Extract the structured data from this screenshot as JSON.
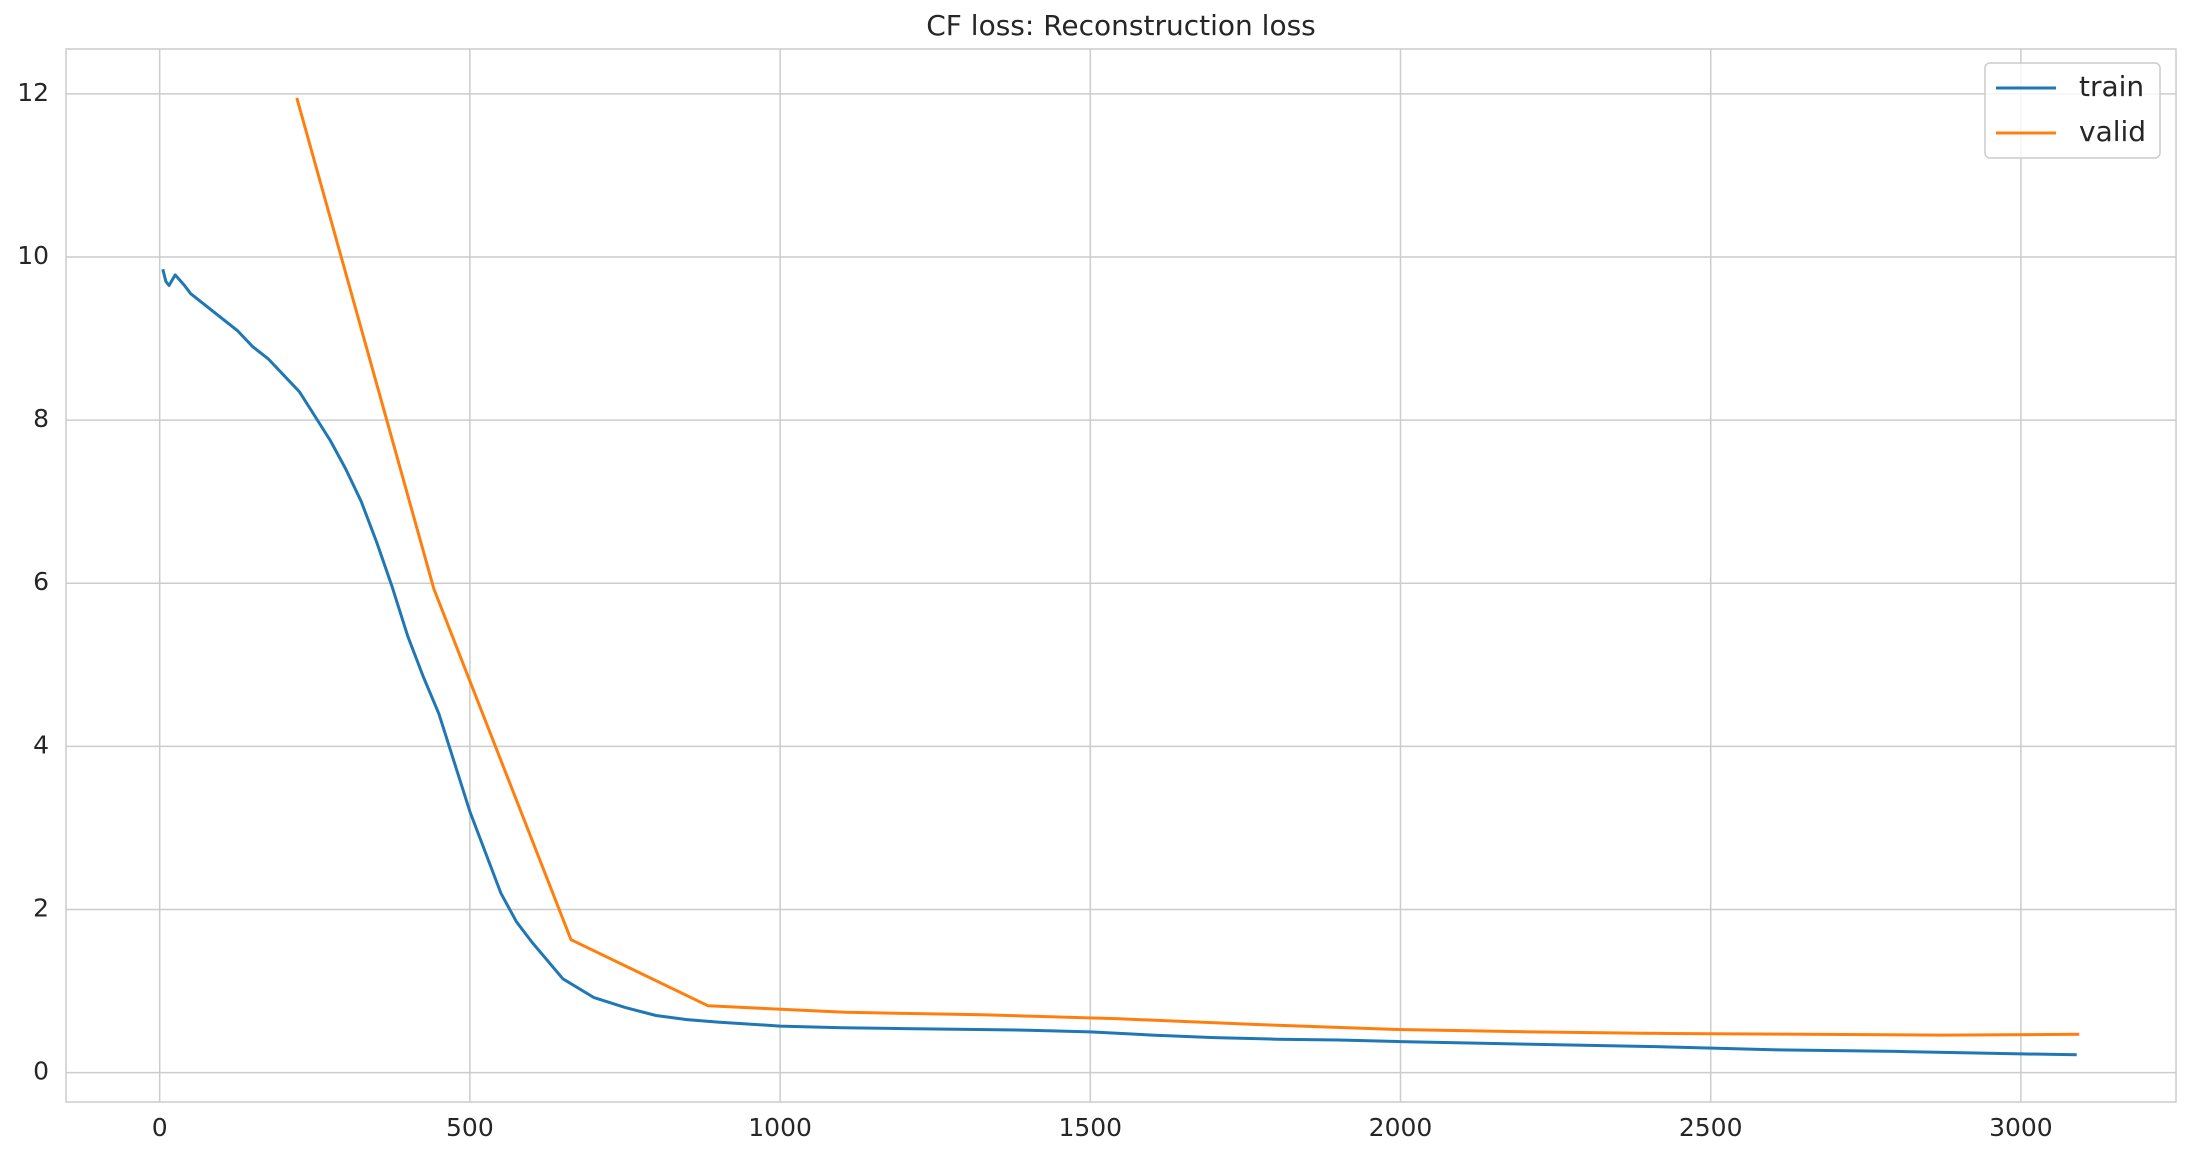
{
  "chart_data": {
    "type": "line",
    "title": "CF loss: Reconstruction loss",
    "xlim": [
      -151,
      3250
    ],
    "ylim": [
      -0.36,
      12.55
    ],
    "xticks": [
      0,
      500,
      1000,
      1500,
      2000,
      2500,
      3000
    ],
    "yticks": [
      0,
      2,
      4,
      6,
      8,
      10,
      12
    ],
    "grid": true,
    "legend": "upper right",
    "series": [
      {
        "name": "train",
        "color": "#1f77b4",
        "x": [
          5,
          10,
          15,
          25,
          40,
          50,
          75,
          100,
          125,
          150,
          175,
          200,
          225,
          250,
          275,
          300,
          325,
          350,
          375,
          400,
          425,
          450,
          475,
          500,
          525,
          550,
          575,
          600,
          650,
          700,
          750,
          800,
          850,
          900,
          1000,
          1100,
          1200,
          1300,
          1400,
          1500,
          1600,
          1700,
          1800,
          1900,
          2000,
          2200,
          2400,
          2600,
          2800,
          3000,
          3090
        ],
        "values": [
          9.85,
          9.7,
          9.65,
          9.78,
          9.65,
          9.55,
          9.4,
          9.25,
          9.1,
          8.9,
          8.75,
          8.55,
          8.35,
          8.05,
          7.75,
          7.4,
          7.0,
          6.5,
          5.95,
          5.35,
          4.85,
          4.4,
          3.8,
          3.2,
          2.7,
          2.2,
          1.85,
          1.6,
          1.15,
          0.92,
          0.8,
          0.7,
          0.65,
          0.62,
          0.57,
          0.55,
          0.54,
          0.53,
          0.52,
          0.5,
          0.46,
          0.43,
          0.41,
          0.4,
          0.38,
          0.35,
          0.32,
          0.28,
          0.26,
          0.23,
          0.22
        ]
      },
      {
        "name": "valid",
        "color": "#ff7f0e",
        "x": [
          221,
          442,
          663,
          884,
          1105,
          1326,
          1547,
          1768,
          1989,
          2210,
          2431,
          2652,
          2873,
          3094
        ],
        "values": [
          11.95,
          5.93,
          1.63,
          0.82,
          0.74,
          0.71,
          0.66,
          0.59,
          0.53,
          0.5,
          0.48,
          0.47,
          0.46,
          0.47
        ]
      }
    ]
  }
}
